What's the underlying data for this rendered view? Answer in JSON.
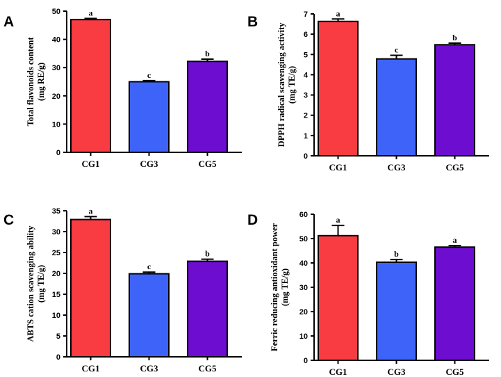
{
  "chart_data": [
    {
      "panel": "A",
      "type": "bar",
      "categories": [
        "CG1",
        "CG3",
        "CG5"
      ],
      "values": [
        47.0,
        25.0,
        32.2
      ],
      "errors": [
        0.4,
        0.4,
        0.8
      ],
      "significance": [
        "a",
        "c",
        "b"
      ],
      "colors": [
        "#f93b42",
        "#3e63f8",
        "#6c0dcf"
      ],
      "ylabel_line1": "Total flavonoids content",
      "ylabel_line2": "(mg RE/g)",
      "ylim": [
        0,
        50
      ],
      "yticks": [
        0,
        10,
        20,
        30,
        40,
        50
      ]
    },
    {
      "panel": "B",
      "type": "bar",
      "categories": [
        "CG1",
        "CG3",
        "CG5"
      ],
      "values": [
        6.63,
        4.78,
        5.48
      ],
      "errors": [
        0.12,
        0.18,
        0.08
      ],
      "significance": [
        "a",
        "c",
        "b"
      ],
      "colors": [
        "#f93b42",
        "#3e63f8",
        "#6c0dcf"
      ],
      "ylabel_line1": "DPPH radical scavenging activity",
      "ylabel_line2": "(mg TE/g)",
      "ylim": [
        0,
        7
      ],
      "yticks": [
        0,
        1,
        2,
        3,
        4,
        5,
        6,
        7
      ]
    },
    {
      "panel": "C",
      "type": "bar",
      "categories": [
        "CG1",
        "CG3",
        "CG5"
      ],
      "values": [
        32.9,
        19.9,
        22.9
      ],
      "errors": [
        0.7,
        0.4,
        0.5
      ],
      "significance": [
        "a",
        "c",
        "b"
      ],
      "colors": [
        "#f93b42",
        "#3e63f8",
        "#6c0dcf"
      ],
      "ylabel_line1": "ABTS cation scavenging ability",
      "ylabel_line2": "(mg TE/g)",
      "ylim": [
        0,
        35
      ],
      "yticks": [
        0,
        5,
        10,
        15,
        20,
        25,
        30,
        35
      ]
    },
    {
      "panel": "D",
      "type": "bar",
      "categories": [
        "CG1",
        "CG3",
        "CG5"
      ],
      "values": [
        51.2,
        40.3,
        46.5
      ],
      "errors": [
        4.2,
        1.1,
        0.6
      ],
      "significance": [
        "a",
        "b",
        "a"
      ],
      "colors": [
        "#f93b42",
        "#3e63f8",
        "#6c0dcf"
      ],
      "ylabel_line1": "Ferric reducing antioxidant power",
      "ylabel_line2": "(mg TE/g)",
      "ylim": [
        0,
        60
      ],
      "yticks": [
        0,
        10,
        20,
        30,
        40,
        50,
        60
      ]
    }
  ]
}
